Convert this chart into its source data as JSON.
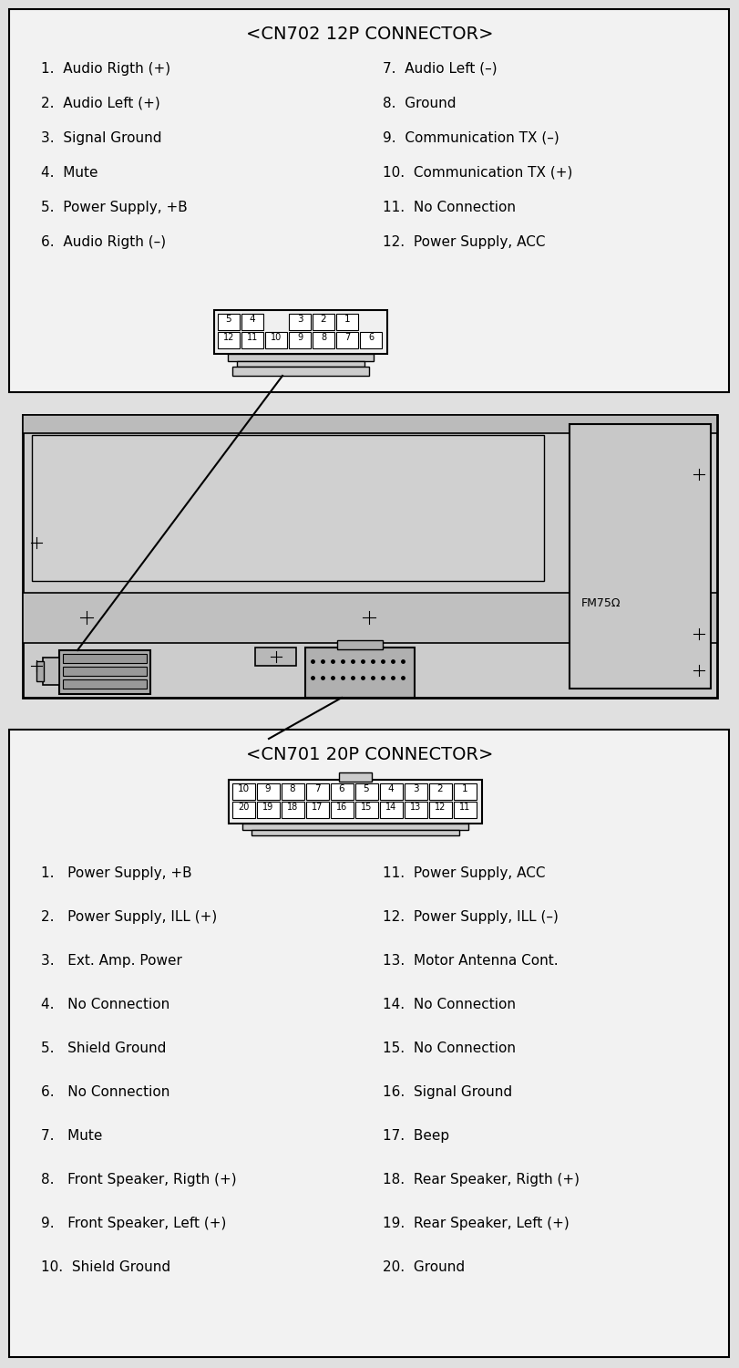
{
  "bg_color": "#e0e0e0",
  "box_color": "#f5f5f5",
  "border_color": "#000000",
  "text_color": "#000000",
  "cn702_title": "<CN702 12P CONNECTOR>",
  "cn702_left": [
    "1.  Audio Rigth (+)",
    "2.  Audio Left (+)",
    "3.  Signal Ground",
    "4.  Mute",
    "5.  Power Supply, +B",
    "6.  Audio Rigth (–)"
  ],
  "cn702_right": [
    "7.  Audio Left (–)",
    "8.  Ground",
    "9.  Communication TX (–)",
    "10.  Communication TX (+)",
    "11.  No Connection",
    "12.  Power Supply, ACC"
  ],
  "cn702_top_row": [
    "5",
    "4",
    "",
    "3",
    "2",
    "1"
  ],
  "cn702_bottom_row": [
    "12",
    "11",
    "10",
    "9",
    "8",
    "7",
    "6"
  ],
  "cn701_title": "<CN701 20P CONNECTOR>",
  "cn701_top_row": [
    "10",
    "9",
    "8",
    "7",
    "6",
    "5",
    "4",
    "3",
    "2",
    "1"
  ],
  "cn701_bottom_row": [
    "20",
    "19",
    "18",
    "17",
    "16",
    "15",
    "14",
    "13",
    "12",
    "11"
  ],
  "cn701_left": [
    "1.   Power Supply, +B",
    "2.   Power Supply, ILL (+)",
    "3.   Ext. Amp. Power",
    "4.   No Connection",
    "5.   Shield Ground",
    "6.   No Connection",
    "7.   Mute",
    "8.   Front Speaker, Rigth (+)",
    "9.   Front Speaker, Left (+)",
    "10.  Shield Ground"
  ],
  "cn701_right": [
    "11.  Power Supply, ACC",
    "12.  Power Supply, ILL (–)",
    "13.  Motor Antenna Cont.",
    "14.  No Connection",
    "15.  No Connection",
    "16.  Signal Ground",
    "17.  Beep",
    "18.  Rear Speaker, Rigth (+)",
    "19.  Rear Speaker, Left (+)",
    "20.  Ground"
  ]
}
